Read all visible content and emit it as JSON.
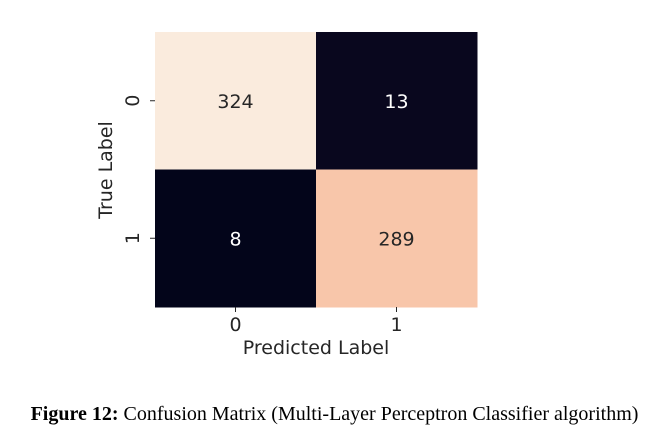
{
  "chart_data": {
    "type": "heatmap",
    "xlabel": "Predicted Label",
    "ylabel": "True Label",
    "x_categories": [
      "0",
      "1"
    ],
    "y_categories": [
      "0",
      "1"
    ],
    "values": [
      [
        324,
        13
      ],
      [
        8,
        289
      ]
    ],
    "colorbar": false
  },
  "caption": {
    "label": "Figure 12:",
    "text": "Confusion Matrix (Multi-Layer Perceptron Classifier algorithm)"
  }
}
